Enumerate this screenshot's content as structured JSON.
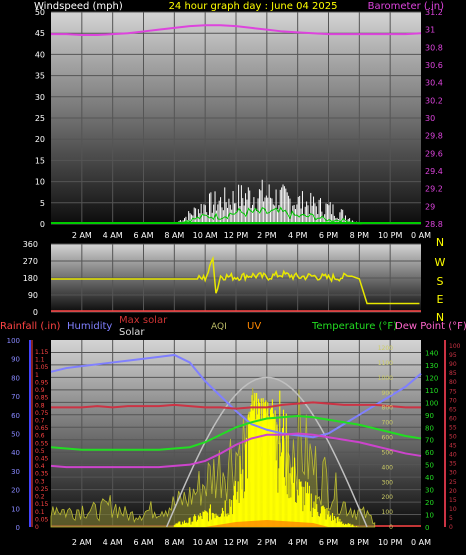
{
  "header": {
    "wind_label": "Windspeed (mph)",
    "title": "24 hour graph day : June 04 2025",
    "baro_label": "Barometer (.in)"
  },
  "compass": [
    "N",
    "W",
    "S",
    "E",
    "N"
  ],
  "legend": {
    "rainfall": "Rainfall (.in)",
    "humidity": "Humidity",
    "max_solar": "Max solar",
    "solar": "Solar",
    "aqi": "AQI",
    "uv": "UV",
    "temperature": "Temperature (°F)",
    "dew_point": "Dew Point (°F)"
  },
  "colors": {
    "wind": "#ffffff",
    "gust": "#00cc00",
    "barometer": "#dd44dd",
    "wind_dir": "#e8e800",
    "rain": "#ff4444",
    "humidity": "#8080ff",
    "max_solar": "#c0c0c0",
    "solar": "#ffff00",
    "aqi": "#bbbb66",
    "uv": "#ff8800",
    "temperature": "#22dd22",
    "dew_point": "#cc3344",
    "heat": "#cc44cc"
  },
  "time_labels": [
    "2 AM",
    "4 AM",
    "6 AM",
    "8 AM",
    "10 AM",
    "12 PM",
    "2 PM",
    "4 PM",
    "6 PM",
    "8 PM",
    "10 PM",
    "0 AM"
  ],
  "chart_data": [
    {
      "type": "line",
      "panel": "wind-baro",
      "ylabel": "Windspeed (mph)",
      "ylim": [
        0,
        50
      ],
      "y_ticks": [
        0,
        5,
        10,
        15,
        20,
        25,
        30,
        35,
        40,
        45,
        50
      ],
      "y2label": "Barometer (.in)",
      "y2lim": [
        28.8,
        31.2
      ],
      "y2_ticks": [
        "28.8",
        "29",
        "29.2",
        "29.4",
        "29.6",
        "29.8",
        "30",
        "30.2",
        "30.4",
        "30.6",
        "30.8",
        "31",
        "31.2"
      ],
      "x_hours": [
        0,
        1,
        2,
        3,
        4,
        5,
        6,
        7,
        8,
        9,
        10,
        11,
        12,
        13,
        14,
        15,
        16,
        17,
        18,
        19,
        20,
        21,
        22,
        23,
        24
      ],
      "series": [
        {
          "name": "Barometer",
          "values": [
            30.95,
            30.95,
            30.94,
            30.94,
            30.95,
            30.96,
            30.98,
            31.0,
            31.02,
            31.04,
            31.05,
            31.05,
            31.04,
            31.02,
            31.0,
            30.98,
            30.97,
            30.96,
            30.95,
            30.95,
            30.95,
            30.95,
            30.95,
            30.95,
            30.96
          ]
        },
        {
          "name": "Wind gust",
          "values": [
            0,
            0,
            0,
            0,
            0,
            0,
            0,
            0,
            0,
            3,
            6,
            7,
            8,
            9,
            9,
            8,
            7,
            6,
            5,
            3,
            0,
            0,
            0,
            0,
            0
          ]
        },
        {
          "name": "Wind speed",
          "values": [
            0,
            0,
            0,
            0,
            0,
            0,
            0,
            0,
            0,
            1,
            2,
            2,
            3,
            3,
            3,
            3,
            2,
            2,
            1,
            1,
            0,
            0,
            0,
            0,
            0
          ]
        }
      ]
    },
    {
      "type": "line",
      "panel": "wind-direction",
      "ylim": [
        0,
        360
      ],
      "y_ticks": [
        0,
        90,
        180,
        270,
        360
      ],
      "series": [
        {
          "name": "Wind direction",
          "x_hours": [
            0,
            1,
            2,
            3,
            4,
            5,
            6,
            7,
            8,
            9,
            9.5,
            10,
            10.3,
            10.5,
            10.7,
            11,
            12,
            13,
            14,
            15,
            16,
            17,
            18,
            19,
            19.5,
            20,
            20.5,
            21,
            22,
            23,
            24
          ],
          "values": [
            175,
            175,
            175,
            175,
            175,
            175,
            175,
            175,
            175,
            175,
            175,
            180,
            230,
            300,
            100,
            190,
            185,
            195,
            185,
            200,
            185,
            190,
            180,
            185,
            190,
            175,
            45,
            45,
            45,
            45,
            45
          ]
        }
      ]
    },
    {
      "type": "line",
      "panel": "weather",
      "rain_ticks": [
        "0",
        "0.05",
        "0.1",
        "0.15",
        "0.2",
        "0.25",
        "0.3",
        "0.35",
        "0.4",
        "0.45",
        "0.5",
        "0.55",
        "0.6",
        "0.65",
        "0.7",
        "0.75",
        "0.8",
        "0.85",
        "0.9",
        "0.95",
        "1",
        "1.05",
        "1.1",
        "1.15"
      ],
      "humidity_ticks": [
        0,
        10,
        20,
        30,
        40,
        50,
        60,
        70,
        80,
        90,
        100
      ],
      "temp_ticks": [
        0,
        10,
        20,
        30,
        40,
        50,
        60,
        70,
        80,
        90,
        100,
        110,
        120,
        130,
        140
      ],
      "dew_ticks": [
        0,
        5,
        10,
        15,
        20,
        25,
        30,
        35,
        40,
        45,
        50,
        55,
        60,
        65,
        70,
        75,
        80,
        85,
        90,
        95,
        100
      ],
      "solar_ticks": [
        0,
        100,
        200,
        300,
        400,
        500,
        600,
        700,
        800,
        900,
        1000,
        1100,
        1200
      ],
      "x_hours": [
        0,
        1,
        2,
        3,
        4,
        5,
        6,
        7,
        8,
        9,
        10,
        11,
        12,
        13,
        14,
        15,
        16,
        17,
        18,
        19,
        20,
        21,
        22,
        23,
        24
      ],
      "series": [
        {
          "name": "Humidity",
          "values": [
            83,
            85,
            86,
            87,
            88,
            89,
            90,
            91,
            92,
            88,
            78,
            70,
            62,
            55,
            52,
            50,
            49,
            48,
            50,
            55,
            60,
            65,
            70,
            75,
            82
          ]
        },
        {
          "name": "Temperature",
          "values": [
            64,
            63,
            62,
            62,
            62,
            62,
            62,
            62,
            63,
            64,
            68,
            74,
            80,
            84,
            87,
            88,
            89,
            88,
            86,
            84,
            82,
            79,
            76,
            73,
            71
          ]
        },
        {
          "name": "Dew Point",
          "values": [
            68,
            68,
            68,
            69,
            68,
            69,
            69,
            69,
            70,
            69,
            68,
            68,
            67,
            68,
            68,
            70,
            71,
            72,
            71,
            70,
            70,
            70,
            69,
            68,
            68
          ]
        },
        {
          "name": "Heat index",
          "values": [
            64,
            63,
            63,
            63,
            63,
            63,
            63,
            63,
            64,
            65,
            68,
            74,
            81,
            86,
            89,
            89,
            90,
            89,
            87,
            85,
            83,
            80,
            77,
            74,
            72
          ]
        },
        {
          "name": "Max solar",
          "values": [
            0,
            0,
            0,
            0,
            0,
            0,
            0,
            0,
            80,
            250,
            450,
            650,
            850,
            950,
            1000,
            950,
            850,
            650,
            450,
            250,
            80,
            0,
            0,
            0,
            0
          ]
        },
        {
          "name": "Solar",
          "values": [
            0,
            0,
            0,
            0,
            0,
            0,
            0,
            0,
            20,
            50,
            100,
            150,
            250,
            800,
            900,
            700,
            300,
            200,
            100,
            30,
            0,
            0,
            0,
            0,
            0
          ]
        },
        {
          "name": "AQI",
          "values": [
            30,
            20,
            25,
            20,
            30,
            15,
            20,
            25,
            30,
            40,
            60,
            80,
            100,
            120,
            110,
            100,
            120,
            80,
            60,
            30,
            20,
            10,
            0,
            0,
            0
          ]
        },
        {
          "name": "UV",
          "values": [
            0,
            0,
            0,
            0,
            0,
            0,
            0,
            0,
            0,
            0,
            0.5,
            1,
            1.5,
            2,
            2,
            1.5,
            1,
            0.5,
            0,
            0,
            0,
            0,
            0,
            0,
            0
          ]
        },
        {
          "name": "Rainfall",
          "values": [
            0,
            0,
            0,
            0,
            0,
            0,
            0,
            0,
            0,
            0,
            0,
            0,
            0,
            0,
            0,
            0,
            0,
            0,
            0,
            0,
            0,
            0,
            0,
            0,
            0
          ]
        }
      ]
    }
  ]
}
